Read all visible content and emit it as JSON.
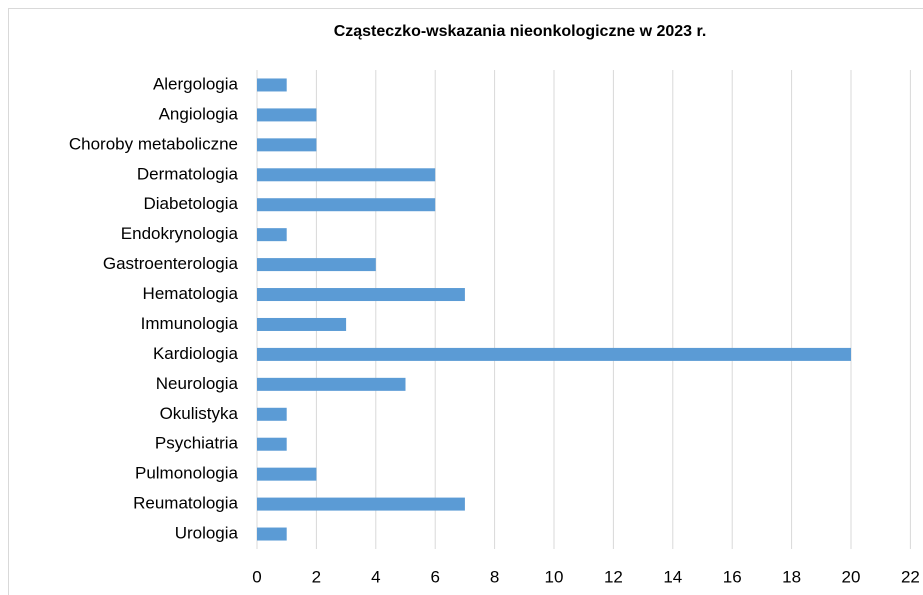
{
  "chart_data": {
    "type": "bar",
    "orientation": "horizontal",
    "title": "Cząsteczko-wskazania nieonkologiczne w 2023 r.",
    "categories": [
      "Alergologia",
      "Angiologia",
      "Choroby metaboliczne",
      "Dermatologia",
      "Diabetologia",
      "Endokrynologia",
      "Gastroenterologia",
      "Hematologia",
      "Immunologia",
      "Kardiologia",
      "Neurologia",
      "Okulistyka",
      "Psychiatria",
      "Pulmonologia",
      "Reumatologia",
      "Urologia"
    ],
    "values": [
      1,
      2,
      2,
      6,
      6,
      1,
      4,
      7,
      3,
      20,
      5,
      1,
      1,
      2,
      7,
      1
    ],
    "color": "#5b9bd5",
    "xlim": [
      0,
      22
    ],
    "xticks": [
      0,
      2,
      4,
      6,
      8,
      10,
      12,
      14,
      16,
      18,
      20,
      22
    ],
    "grid": true
  }
}
